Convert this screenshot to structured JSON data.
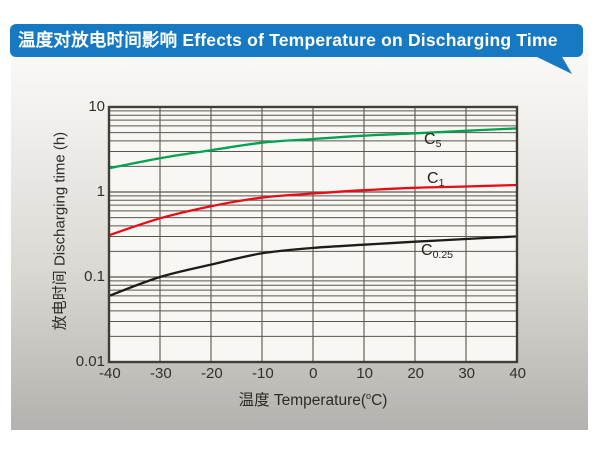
{
  "header": {
    "title": "温度对放电时间影响 Effects of Temperature on Discharging Time",
    "bg_color": "#1679c2",
    "text_color": "#ffffff"
  },
  "chart_data": {
    "type": "line",
    "title": "温度对放电时间影响 Effects of Temperature on Discharging Time",
    "x_label": "温度  Temperature(°C)",
    "x_label_parts": {
      "pre": "温度  Temperature(",
      "sup": "o",
      "post": "C)"
    },
    "y_label": "放电时间 Discharging time (h)",
    "y_scale": "log",
    "x_range": [
      -40,
      40
    ],
    "y_range": [
      0.01,
      10
    ],
    "grid": "major-vertical-every-10C, log-minor-horizontal",
    "legend_position": "inline-curve-labels",
    "x": [
      -40,
      -30,
      -20,
      -10,
      0,
      10,
      20,
      30,
      40
    ],
    "x_tick_labels": [
      "-40",
      "-30",
      "-20",
      "-10",
      "0",
      "10",
      "20",
      "30",
      "40"
    ],
    "y_tick_labels": [
      "10",
      "1",
      "0.1",
      "0.01"
    ],
    "y_tick_values": [
      10,
      1,
      0.1,
      0.01
    ],
    "series": [
      {
        "name": "C5",
        "label_main": "C",
        "label_sub": "5",
        "color": "#00a24f",
        "values": [
          1.9,
          2.5,
          3.1,
          3.8,
          4.2,
          4.6,
          4.9,
          5.25,
          5.6
        ]
      },
      {
        "name": "C1",
        "label_main": "C",
        "label_sub": "1",
        "color": "#e60d16",
        "values": [
          0.31,
          0.49,
          0.68,
          0.86,
          0.96,
          1.05,
          1.12,
          1.16,
          1.21
        ]
      },
      {
        "name": "C0.25",
        "label_main": "C",
        "label_sub": "0.25",
        "color": "#1f1b18",
        "values": [
          0.06,
          0.1,
          0.14,
          0.19,
          0.22,
          0.24,
          0.26,
          0.28,
          0.3
        ]
      }
    ],
    "style": {
      "plot_bg": "#f8f7f4",
      "grid_color": "#5b5651",
      "border_color": "#413d39"
    }
  }
}
